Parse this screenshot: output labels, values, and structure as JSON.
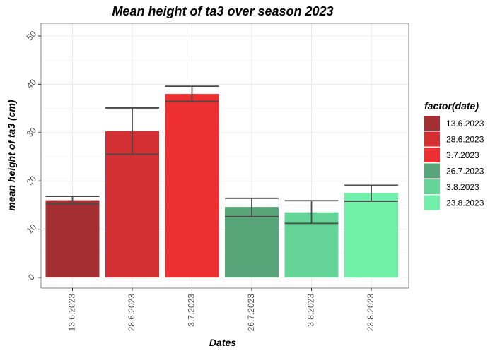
{
  "chart_data": {
    "type": "bar",
    "title": "Mean height of ta3 over season 2023",
    "xlabel": "Dates",
    "ylabel": "mean height of ta3 (cm)",
    "categories": [
      "13.6.2023",
      "28.6.2023",
      "3.7.2023",
      "26.7.2023",
      "3.8.2023",
      "23.8.2023"
    ],
    "values": [
      16.0,
      30.3,
      38.0,
      14.6,
      13.5,
      17.5
    ],
    "error_low": [
      15.2,
      25.5,
      36.5,
      12.6,
      11.2,
      15.8
    ],
    "error_high": [
      16.8,
      35.1,
      39.6,
      16.4,
      15.9,
      19.1
    ],
    "ylim": [
      0,
      50
    ],
    "y_ticks": [
      0,
      10,
      20,
      30,
      40,
      50
    ],
    "grid": true,
    "legend": {
      "title": "factor(date)",
      "position": "right",
      "entries": [
        "13.6.2023",
        "28.6.2023",
        "3.7.2023",
        "26.7.2023",
        "3.8.2023",
        "23.8.2023"
      ]
    },
    "colors": [
      "#A32F32",
      "#D42F32",
      "#EE2F32",
      "#58A57A",
      "#64D497",
      "#70F0A8"
    ]
  }
}
